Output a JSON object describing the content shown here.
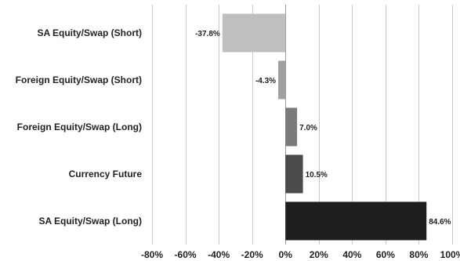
{
  "chart_data": {
    "type": "bar",
    "orientation": "horizontal",
    "title": "",
    "xlabel": "",
    "ylabel": "",
    "grid": "vertical",
    "legend": "none",
    "xlim": [
      -80,
      100
    ],
    "x_ticks": [
      -80,
      -60,
      -40,
      -20,
      0,
      20,
      40,
      60,
      80,
      100
    ],
    "x_tick_labels": [
      "-80%",
      "-60%",
      "-40%",
      "-20%",
      "0%",
      "20%",
      "40%",
      "60%",
      "80%",
      "100%"
    ],
    "categories": [
      "SA Equity/Swap (Short)",
      "Foreign Equity/Swap (Short)",
      "Foreign Equity/Swap (Long)",
      "Currency Future",
      "SA Equity/Swap (Long)"
    ],
    "values": [
      -37.8,
      -4.3,
      7.0,
      10.5,
      84.6
    ],
    "value_labels": [
      "-37.8%",
      "-4.3%",
      "7.0%",
      "10.5%",
      "84.6%"
    ],
    "colors": [
      "#bfbfbf",
      "#a0a0a0",
      "#7a7a7a",
      "#4a4a4a",
      "#1f1f1f"
    ]
  }
}
